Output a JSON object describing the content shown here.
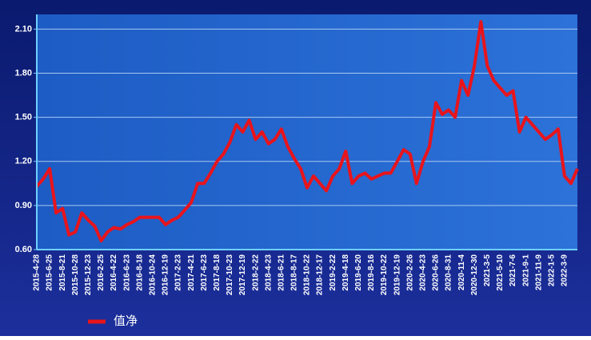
{
  "chart_data": {
    "type": "line",
    "categories": [
      "2015-4-28",
      null,
      "2015-6-25",
      null,
      "2015-8-21",
      null,
      "2015-10-28",
      null,
      "2015-12-23",
      null,
      "2016-2-25",
      null,
      "2016-4-22",
      null,
      "2016-6-23",
      null,
      "2016-8-18",
      null,
      "2016-10-24",
      null,
      "2016-12-19",
      null,
      "2017-2-23",
      null,
      "2017-4-21",
      null,
      "2017-6-23",
      null,
      "2017-8-18",
      null,
      "2017-10-23",
      null,
      "2017-12-19",
      null,
      "2018-2-22",
      null,
      "2018-4-23",
      null,
      "2018-6-21",
      null,
      "2018-8-17",
      null,
      "2018-10-22",
      null,
      "2018-12-17",
      null,
      "2019-2-22",
      null,
      "2019-4-18",
      null,
      "2019-6-20",
      null,
      "2019-8-16",
      null,
      "2019-10-22",
      null,
      "2019-12-19",
      null,
      "2020-2-26",
      null,
      "2020-4-23",
      null,
      "2020-6-26",
      null,
      "2020-8-31",
      null,
      "2020-11-4",
      null,
      "2020-12-30",
      null,
      "2021-3-5",
      null,
      "2021-5-10",
      null,
      "2021-7-6",
      null,
      "2021-9-1",
      null,
      "2021-11-9",
      null,
      "2022-1-5",
      null,
      "2022-3-9",
      null,
      null
    ],
    "series": [
      {
        "name": "值净",
        "color": "#e8141c",
        "values": [
          1.03,
          1.08,
          1.15,
          0.85,
          0.88,
          0.7,
          0.72,
          0.85,
          0.8,
          0.76,
          0.66,
          0.72,
          0.75,
          0.74,
          0.77,
          0.79,
          0.82,
          0.82,
          0.82,
          0.82,
          0.77,
          0.8,
          0.82,
          0.87,
          0.92,
          1.05,
          1.05,
          1.12,
          1.2,
          1.25,
          1.33,
          1.45,
          1.4,
          1.48,
          1.35,
          1.4,
          1.32,
          1.35,
          1.42,
          1.3,
          1.22,
          1.15,
          1.02,
          1.1,
          1.05,
          1.0,
          1.1,
          1.15,
          1.27,
          1.05,
          1.1,
          1.12,
          1.08,
          1.1,
          1.12,
          1.12,
          1.2,
          1.28,
          1.25,
          1.05,
          1.2,
          1.3,
          1.6,
          1.52,
          1.55,
          1.5,
          1.75,
          1.65,
          1.85,
          2.15,
          1.85,
          1.75,
          1.7,
          1.65,
          1.68,
          1.4,
          1.5,
          1.45,
          1.4,
          1.35,
          1.38,
          1.42,
          1.1,
          1.05,
          1.15
        ]
      }
    ],
    "ylim": [
      0.6,
      2.2
    ],
    "yticks": [
      {
        "value": 0.6,
        "label": "0.60"
      },
      {
        "value": 0.9,
        "label": "0.90"
      },
      {
        "value": 1.2,
        "label": "1.20"
      },
      {
        "value": 1.5,
        "label": "1.50"
      },
      {
        "value": 1.8,
        "label": "1.80"
      },
      {
        "value": 2.1,
        "label": "2.10"
      }
    ],
    "grid": true
  }
}
